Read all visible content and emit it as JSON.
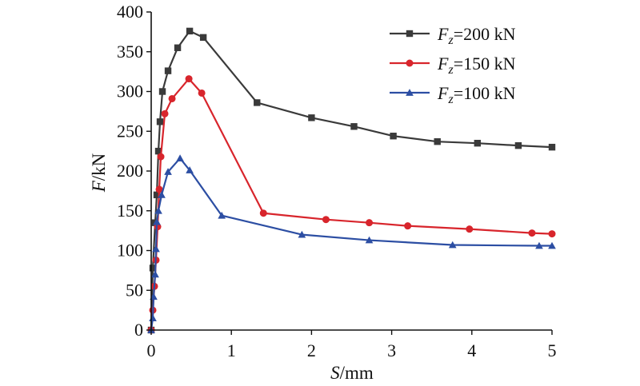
{
  "chart_data": {
    "type": "line",
    "xlabel": "S/mm",
    "ylabel": "F/kN",
    "xlabel_parts": {
      "var": "S",
      "unit": "/mm"
    },
    "ylabel_parts": {
      "var": "F",
      "unit": "/kN"
    },
    "xlim": [
      0,
      5
    ],
    "ylim": [
      0,
      400
    ],
    "xticks": [
      0,
      1,
      2,
      3,
      4,
      5
    ],
    "yticks": [
      0,
      50,
      100,
      150,
      200,
      250,
      300,
      350,
      400
    ],
    "grid": false,
    "legend_position": "top-right",
    "series": [
      {
        "name": "Fz=200 kN",
        "label_var": "F",
        "label_sub": "z",
        "label_rest": "=200 kN",
        "color": "#3a3a3a",
        "marker": "square",
        "x": [
          0.0,
          0.02,
          0.05,
          0.07,
          0.09,
          0.11,
          0.14,
          0.21,
          0.33,
          0.48,
          0.65,
          1.32,
          2.0,
          2.53,
          3.02,
          3.57,
          4.07,
          4.58,
          5.0
        ],
        "y": [
          0,
          78,
          135,
          170,
          225,
          262,
          300,
          326,
          355,
          376,
          368,
          286,
          267,
          256,
          244,
          237,
          235,
          232,
          230
        ]
      },
      {
        "name": "Fz=150 kN",
        "label_var": "F",
        "label_sub": "z",
        "label_rest": "=150 kN",
        "color": "#d8252c",
        "marker": "circle",
        "x": [
          0.0,
          0.02,
          0.04,
          0.06,
          0.08,
          0.1,
          0.12,
          0.17,
          0.26,
          0.47,
          0.63,
          1.4,
          2.18,
          2.72,
          3.2,
          3.97,
          4.75,
          5.0
        ],
        "y": [
          0,
          25,
          55,
          88,
          130,
          177,
          218,
          272,
          291,
          316,
          298,
          147,
          139,
          135,
          131,
          127,
          122,
          121
        ]
      },
      {
        "name": "Fz=100 kN",
        "label_var": "F",
        "label_sub": "z",
        "label_rest": "=100 kN",
        "color": "#2c4ea3",
        "marker": "triangle",
        "x": [
          0.0,
          0.02,
          0.03,
          0.05,
          0.06,
          0.07,
          0.09,
          0.13,
          0.21,
          0.36,
          0.48,
          0.88,
          1.88,
          2.72,
          3.76,
          4.84,
          5.0
        ],
        "y": [
          0,
          15,
          42,
          70,
          102,
          136,
          150,
          170,
          199,
          216,
          201,
          144,
          120,
          113,
          107,
          106,
          106
        ]
      }
    ]
  }
}
